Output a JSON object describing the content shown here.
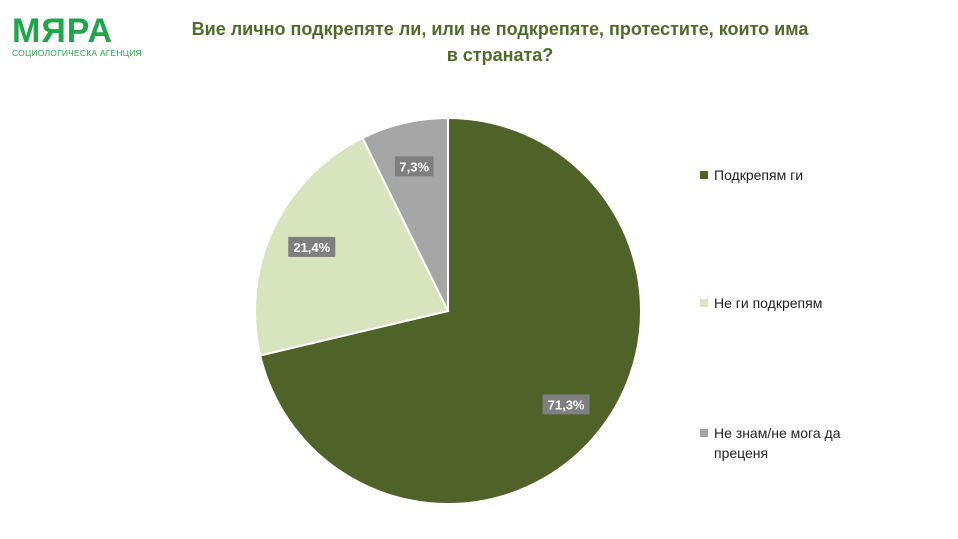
{
  "logo": {
    "word": "МЯРА",
    "subtitle": "СОЦИОЛОГИЧЕСКА АГЕНЦИЯ"
  },
  "title": {
    "line1": "Вие лично подкрепяте ли, или не подкрепяте, протестите, които има",
    "line2": "в страната?"
  },
  "chart_data": {
    "type": "pie",
    "categories": [
      "Подкрепям ги",
      "Не ги подкрепям",
      "Не знам/не мога да преценя"
    ],
    "values": [
      71.3,
      21.4,
      7.3
    ],
    "labels": [
      "71,3%",
      "21,4%",
      "7,3%"
    ],
    "colors": [
      "#4f6228",
      "#d7e4bd",
      "#a6a6a6"
    ],
    "legend_position": "right",
    "start": "top, clockwise"
  },
  "legend": {
    "items": [
      {
        "label": "Подкрепям ги",
        "color": "#4f6228"
      },
      {
        "label": "Не ги подкрепям",
        "color": "#d7e4bd"
      },
      {
        "label": "Не знам/не мога да преценя",
        "color": "#a6a6a6"
      }
    ]
  }
}
